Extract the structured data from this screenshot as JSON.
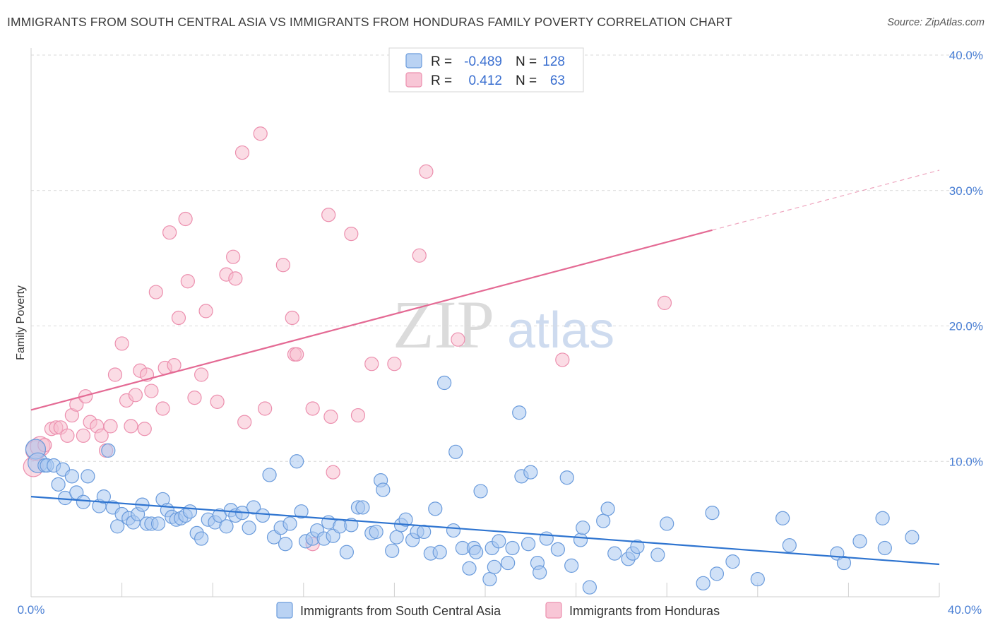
{
  "header": {
    "title": "IMMIGRANTS FROM SOUTH CENTRAL ASIA VS IMMIGRANTS FROM HONDURAS FAMILY POVERTY CORRELATION CHART",
    "source": "Source: ZipAtlas.com"
  },
  "watermark": {
    "zip": "ZIP",
    "atlas": "atlas"
  },
  "legend": {
    "r_label": "R =",
    "n_label": "N =",
    "rows": [
      {
        "r": "-0.489",
        "n": "128"
      },
      {
        "r": "0.412",
        "n": "63"
      }
    ]
  },
  "colors": {
    "blue_fill": "#a9c8f0",
    "blue_stroke": "#6a9bdc",
    "blue_line": "#2e74d0",
    "pink_fill": "#f7bfd0",
    "pink_stroke": "#ec8fae",
    "pink_line": "#e46a94"
  },
  "chart_data": {
    "type": "scatter",
    "title": "IMMIGRANTS FROM SOUTH CENTRAL ASIA VS IMMIGRANTS FROM HONDURAS FAMILY POVERTY CORRELATION CHART",
    "xlabel": "",
    "ylabel": "Family Poverty",
    "xlim": [
      0,
      40
    ],
    "ylim": [
      0,
      40
    ],
    "x_ticks": [
      "0.0%",
      "40.0%"
    ],
    "y_ticks": [
      {
        "value": 10,
        "label": "10.0%"
      },
      {
        "value": 20,
        "label": "20.0%"
      },
      {
        "value": 30,
        "label": "30.0%"
      },
      {
        "value": 40,
        "label": "40.0%"
      }
    ],
    "series": [
      {
        "name": "Immigrants from South Central Asia",
        "r": -0.489,
        "n": 128,
        "trend": {
          "x0": 0,
          "y0": 7.4,
          "x1": 40,
          "y1": 2.4,
          "solid_until": 40
        },
        "points": [
          [
            0.2,
            10.9
          ],
          [
            0.3,
            9.9
          ],
          [
            0.6,
            9.7
          ],
          [
            0.7,
            9.7
          ],
          [
            1.0,
            9.7
          ],
          [
            1.2,
            8.3
          ],
          [
            1.4,
            9.4
          ],
          [
            1.5,
            7.3
          ],
          [
            1.8,
            8.9
          ],
          [
            2.0,
            7.7
          ],
          [
            2.3,
            7.0
          ],
          [
            2.5,
            8.9
          ],
          [
            3.0,
            6.7
          ],
          [
            3.2,
            7.4
          ],
          [
            3.4,
            10.8
          ],
          [
            3.6,
            6.6
          ],
          [
            3.8,
            5.2
          ],
          [
            4.0,
            6.1
          ],
          [
            4.3,
            5.8
          ],
          [
            4.5,
            5.5
          ],
          [
            4.7,
            6.1
          ],
          [
            4.9,
            6.8
          ],
          [
            5.1,
            5.4
          ],
          [
            5.3,
            5.4
          ],
          [
            5.6,
            5.4
          ],
          [
            5.8,
            7.2
          ],
          [
            6.0,
            6.4
          ],
          [
            6.2,
            5.9
          ],
          [
            6.4,
            5.7
          ],
          [
            6.6,
            5.8
          ],
          [
            6.8,
            6.0
          ],
          [
            7.0,
            6.3
          ],
          [
            7.3,
            4.7
          ],
          [
            7.5,
            4.3
          ],
          [
            7.8,
            5.7
          ],
          [
            8.1,
            5.5
          ],
          [
            8.3,
            6.0
          ],
          [
            8.6,
            5.2
          ],
          [
            8.8,
            6.4
          ],
          [
            9.0,
            6.0
          ],
          [
            9.3,
            6.2
          ],
          [
            9.6,
            5.1
          ],
          [
            9.8,
            6.6
          ],
          [
            10.2,
            6.0
          ],
          [
            10.5,
            9.0
          ],
          [
            10.7,
            4.4
          ],
          [
            11.0,
            5.1
          ],
          [
            11.2,
            3.9
          ],
          [
            11.4,
            5.4
          ],
          [
            11.7,
            10.0
          ],
          [
            11.9,
            6.3
          ],
          [
            12.1,
            4.1
          ],
          [
            12.4,
            4.3
          ],
          [
            12.6,
            4.9
          ],
          [
            12.9,
            4.3
          ],
          [
            13.1,
            5.5
          ],
          [
            13.3,
            4.5
          ],
          [
            13.6,
            5.2
          ],
          [
            13.9,
            3.3
          ],
          [
            14.1,
            5.3
          ],
          [
            14.4,
            6.6
          ],
          [
            14.6,
            6.6
          ],
          [
            15.0,
            4.7
          ],
          [
            15.2,
            4.8
          ],
          [
            15.4,
            8.6
          ],
          [
            15.5,
            7.9
          ],
          [
            15.9,
            3.4
          ],
          [
            16.1,
            4.4
          ],
          [
            16.3,
            5.3
          ],
          [
            16.5,
            5.7
          ],
          [
            16.8,
            4.2
          ],
          [
            17.0,
            4.8
          ],
          [
            17.3,
            4.8
          ],
          [
            17.6,
            3.2
          ],
          [
            17.8,
            6.5
          ],
          [
            18.0,
            3.3
          ],
          [
            18.2,
            15.8
          ],
          [
            18.6,
            4.9
          ],
          [
            18.7,
            10.7
          ],
          [
            19.0,
            3.6
          ],
          [
            19.3,
            2.1
          ],
          [
            19.5,
            3.6
          ],
          [
            19.6,
            3.3
          ],
          [
            19.8,
            7.8
          ],
          [
            20.2,
            1.3
          ],
          [
            20.3,
            3.6
          ],
          [
            20.4,
            2.2
          ],
          [
            20.6,
            4.1
          ],
          [
            21.0,
            2.5
          ],
          [
            21.2,
            3.6
          ],
          [
            21.5,
            13.6
          ],
          [
            21.6,
            8.9
          ],
          [
            21.9,
            3.9
          ],
          [
            22.0,
            9.2
          ],
          [
            22.3,
            2.5
          ],
          [
            22.4,
            1.8
          ],
          [
            22.7,
            4.3
          ],
          [
            23.2,
            3.5
          ],
          [
            23.6,
            8.8
          ],
          [
            23.8,
            2.3
          ],
          [
            24.2,
            4.2
          ],
          [
            24.3,
            5.1
          ],
          [
            24.6,
            0.7
          ],
          [
            25.2,
            5.6
          ],
          [
            25.4,
            6.5
          ],
          [
            25.7,
            3.2
          ],
          [
            26.3,
            2.8
          ],
          [
            26.5,
            3.2
          ],
          [
            26.7,
            3.7
          ],
          [
            27.6,
            3.1
          ],
          [
            28.0,
            5.4
          ],
          [
            29.6,
            1.0
          ],
          [
            30.0,
            6.2
          ],
          [
            30.2,
            1.7
          ],
          [
            30.9,
            2.6
          ],
          [
            32.0,
            1.3
          ],
          [
            33.1,
            5.8
          ],
          [
            33.4,
            3.8
          ],
          [
            35.5,
            3.2
          ],
          [
            35.8,
            2.5
          ],
          [
            36.5,
            4.1
          ],
          [
            37.5,
            5.8
          ],
          [
            37.6,
            3.6
          ],
          [
            38.8,
            4.4
          ]
        ]
      },
      {
        "name": "Immigrants from Honduras",
        "r": 0.412,
        "n": 63,
        "trend": {
          "x0": 0,
          "y0": 13.8,
          "x1": 40,
          "y1": 31.5,
          "solid_until": 30.0
        },
        "points": [
          [
            0.1,
            9.6
          ],
          [
            0.2,
            10.8
          ],
          [
            0.4,
            11.1
          ],
          [
            0.6,
            11.2
          ],
          [
            0.9,
            12.4
          ],
          [
            1.1,
            12.5
          ],
          [
            1.3,
            12.5
          ],
          [
            1.6,
            11.9
          ],
          [
            1.8,
            13.4
          ],
          [
            2.0,
            14.2
          ],
          [
            2.3,
            11.9
          ],
          [
            2.4,
            14.8
          ],
          [
            2.6,
            12.9
          ],
          [
            2.9,
            12.6
          ],
          [
            3.1,
            11.9
          ],
          [
            3.3,
            10.8
          ],
          [
            3.5,
            12.6
          ],
          [
            3.7,
            16.4
          ],
          [
            4.0,
            18.7
          ],
          [
            4.2,
            14.5
          ],
          [
            4.4,
            12.6
          ],
          [
            4.6,
            14.9
          ],
          [
            4.8,
            16.7
          ],
          [
            5.0,
            12.4
          ],
          [
            5.1,
            16.4
          ],
          [
            5.3,
            15.2
          ],
          [
            5.5,
            22.5
          ],
          [
            5.8,
            13.9
          ],
          [
            5.9,
            16.9
          ],
          [
            6.1,
            26.9
          ],
          [
            6.3,
            17.1
          ],
          [
            6.5,
            20.6
          ],
          [
            6.8,
            27.9
          ],
          [
            6.9,
            23.3
          ],
          [
            7.2,
            14.7
          ],
          [
            7.5,
            16.4
          ],
          [
            7.7,
            21.1
          ],
          [
            8.2,
            14.4
          ],
          [
            8.6,
            23.8
          ],
          [
            8.9,
            25.1
          ],
          [
            9.0,
            23.5
          ],
          [
            9.3,
            32.8
          ],
          [
            9.4,
            12.9
          ],
          [
            10.1,
            34.2
          ],
          [
            10.3,
            13.9
          ],
          [
            11.1,
            24.5
          ],
          [
            11.5,
            20.6
          ],
          [
            11.6,
            17.9
          ],
          [
            11.7,
            17.9
          ],
          [
            12.4,
            13.9
          ],
          [
            12.4,
            3.9
          ],
          [
            13.1,
            28.2
          ],
          [
            13.2,
            13.3
          ],
          [
            13.3,
            9.2
          ],
          [
            14.1,
            26.8
          ],
          [
            14.4,
            13.4
          ],
          [
            15.0,
            17.2
          ],
          [
            16.0,
            17.2
          ],
          [
            17.1,
            25.2
          ],
          [
            17.4,
            31.4
          ],
          [
            18.8,
            19.0
          ],
          [
            23.4,
            17.5
          ],
          [
            27.9,
            21.7
          ]
        ]
      }
    ],
    "bottom_legend": [
      "Immigrants from South Central Asia",
      "Immigrants from Honduras"
    ]
  }
}
